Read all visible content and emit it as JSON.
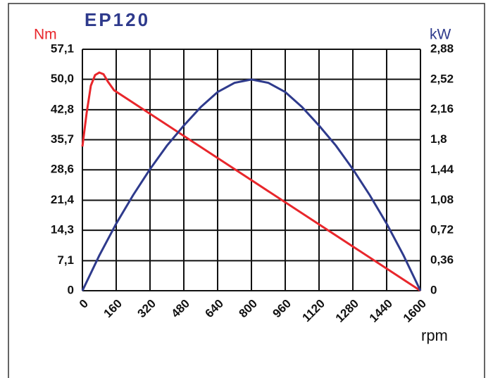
{
  "chart_data": {
    "type": "line",
    "title": "EP120",
    "ylabel": "Nm",
    "y2label": "kW",
    "xlabel": "rpm",
    "xlim": [
      0,
      1600
    ],
    "xticks": [
      0,
      160,
      320,
      480,
      640,
      800,
      960,
      1120,
      1280,
      1440,
      1600
    ],
    "ylim": [
      0,
      57.1
    ],
    "yticks": [
      0,
      {
        "value": 7.1,
        "label": "7,1"
      },
      {
        "value": 14.3,
        "label": "14,3"
      },
      {
        "value": 21.4,
        "label": "21,4"
      },
      {
        "value": 28.6,
        "label": "28,6"
      },
      {
        "value": 35.7,
        "label": "35,7"
      },
      {
        "value": 42.8,
        "label": "42,8"
      },
      {
        "value": 50,
        "label": "50,0"
      },
      {
        "value": 57.1,
        "label": "57,1"
      }
    ],
    "y2lim": [
      0,
      2.88
    ],
    "y2ticks": [
      0,
      {
        "value": 0.36,
        "label": "0,36"
      },
      {
        "value": 0.72,
        "label": "0,72"
      },
      {
        "value": 1.08,
        "label": "1,08"
      },
      {
        "value": 1.44,
        "label": "1,44"
      },
      {
        "value": 1.8,
        "label": "1,8"
      },
      {
        "value": 2.16,
        "label": "2,16"
      },
      {
        "value": 2.52,
        "label": "2,52"
      },
      {
        "value": 2.88,
        "label": "2,88"
      }
    ],
    "grid": true,
    "series": [
      {
        "color": "#e8262b",
        "axis": "y",
        "x": [
          0,
          20,
          40,
          60,
          80,
          100,
          120,
          150,
          1600
        ],
        "values": [
          34.1,
          42,
          48.5,
          51,
          51.6,
          51.2,
          49.5,
          47.4,
          0
        ]
      },
      {
        "color": "#2e3a8c",
        "axis": "y2",
        "x": [
          0,
          80,
          160,
          240,
          320,
          400,
          480,
          560,
          640,
          720,
          800,
          880,
          960,
          1040,
          1120,
          1200,
          1280,
          1360,
          1440,
          1520,
          1600
        ],
        "values": [
          0,
          0.42,
          0.8,
          1.14,
          1.45,
          1.73,
          1.97,
          2.19,
          2.37,
          2.48,
          2.52,
          2.48,
          2.37,
          2.19,
          1.97,
          1.73,
          1.45,
          1.14,
          0.8,
          0.42,
          0
        ]
      }
    ]
  }
}
